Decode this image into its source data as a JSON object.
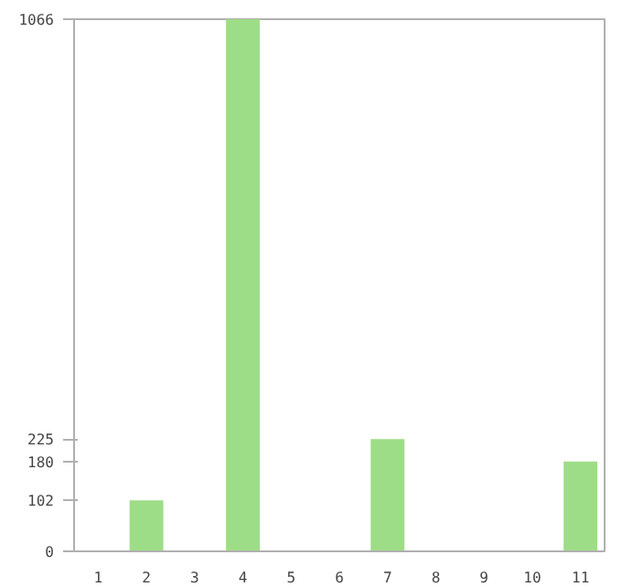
{
  "chart_data": {
    "type": "bar",
    "categories": [
      "1",
      "2",
      "3",
      "4",
      "5",
      "6",
      "7",
      "8",
      "9",
      "10",
      "11"
    ],
    "values": [
      0,
      102,
      0,
      1066,
      0,
      0,
      225,
      0,
      0,
      0,
      180
    ],
    "color": "#9edd87",
    "ylim": [
      0,
      1066
    ],
    "yticks": [
      0,
      102,
      180,
      225,
      1066
    ],
    "grid": false
  }
}
